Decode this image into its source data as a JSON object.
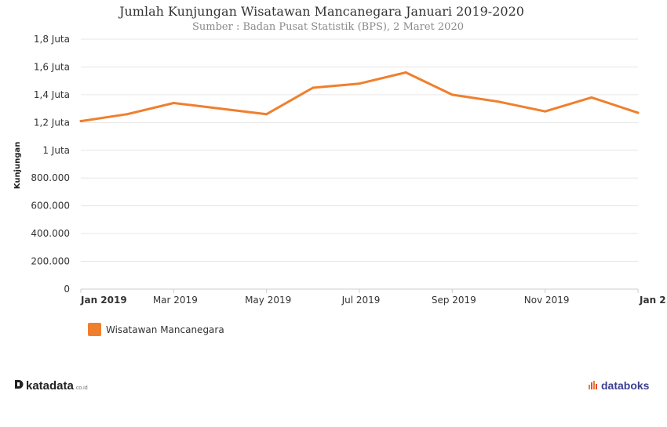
{
  "chart_data": {
    "type": "line",
    "title": "Jumlah Kunjungan Wisatawan Mancanegara Januari 2019-2020",
    "subtitle": "Sumber : Badan Pusat Statistik (BPS), 2 Maret 2020",
    "xlabel": "",
    "ylabel": "Kunjungan",
    "x": [
      "2019-01",
      "2019-02",
      "2019-03",
      "2019-04",
      "2019-05",
      "2019-06",
      "2019-07",
      "2019-08",
      "2019-09",
      "2019-10",
      "2019-11",
      "2019-12",
      "2020-01"
    ],
    "x_tick_labels": [
      {
        "x": "2019-01",
        "label": "Jan 2019",
        "bold": true
      },
      {
        "x": "2019-03",
        "label": "Mar 2019",
        "bold": false
      },
      {
        "x": "2019-05",
        "label": "May 2019",
        "bold": false
      },
      {
        "x": "2019-07",
        "label": "Jul 2019",
        "bold": false
      },
      {
        "x": "2019-09",
        "label": "Sep 2019",
        "bold": false
      },
      {
        "x": "2019-11",
        "label": "Nov 2019",
        "bold": false
      },
      {
        "x": "2020-01",
        "label": "Jan 2",
        "bold": true
      }
    ],
    "y_ticks": [
      {
        "value": 0,
        "label": "0"
      },
      {
        "value": 200000,
        "label": "200.000"
      },
      {
        "value": 400000,
        "label": "400.000"
      },
      {
        "value": 600000,
        "label": "600.000"
      },
      {
        "value": 800000,
        "label": "800.000"
      },
      {
        "value": 1000000,
        "label": "1 Juta"
      },
      {
        "value": 1200000,
        "label": "1,2 Juta"
      },
      {
        "value": 1400000,
        "label": "1,4 Juta"
      },
      {
        "value": 1600000,
        "label": "1,6 Juta"
      },
      {
        "value": 1800000,
        "label": "1,8 Juta"
      }
    ],
    "ylim": [
      0,
      1800000
    ],
    "grid": true,
    "legend_position": "bottom-left",
    "series": [
      {
        "name": "Wisatawan Mancanegara",
        "color": "#f07f2d",
        "values": [
          1210000,
          1260000,
          1340000,
          1300000,
          1260000,
          1450000,
          1480000,
          1560000,
          1400000,
          1350000,
          1280000,
          1380000,
          1270000
        ]
      }
    ]
  },
  "footer": {
    "left_logo_text": "katadata",
    "left_logo_suffix": ".co.id",
    "right_logo_text": "databoks"
  }
}
